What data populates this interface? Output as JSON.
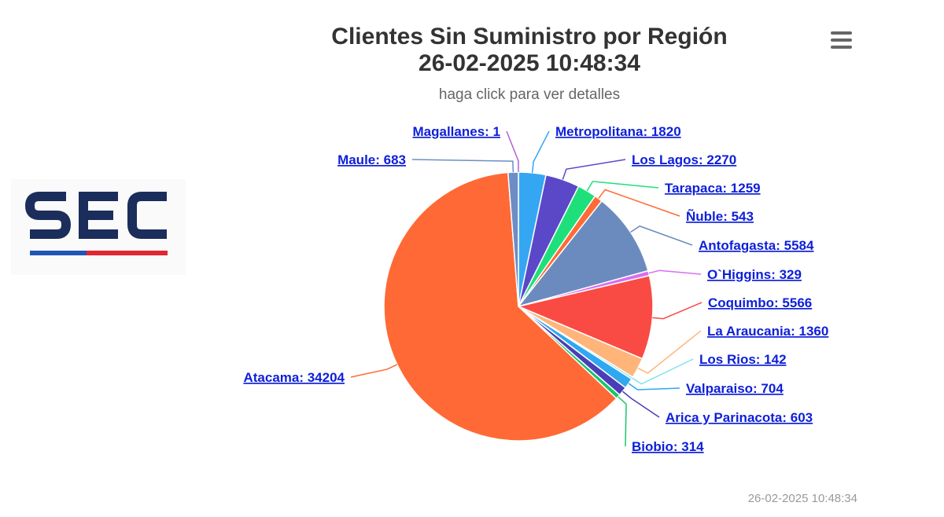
{
  "chart_data": {
    "type": "pie",
    "title_line1": "Clientes Sin Suministro por Región",
    "title_line2": "26-02-2025 10:48:34",
    "subtitle": "haga click para ver detalles",
    "slices": [
      {
        "name": "Magallanes",
        "value": 1,
        "color": "#b25fd9"
      },
      {
        "name": "Metropolitana",
        "value": 1820,
        "color": "#35a7f2"
      },
      {
        "name": "Los Lagos",
        "value": 2270,
        "color": "#5a48c9"
      },
      {
        "name": "Tarapaca",
        "value": 1259,
        "color": "#1ee07a"
      },
      {
        "name": "Ñuble",
        "value": 543,
        "color": "#ff6a35"
      },
      {
        "name": "Antofagasta",
        "value": 5584,
        "color": "#6b8bbf"
      },
      {
        "name": "O`Higgins",
        "value": 329,
        "color": "#d86ef0"
      },
      {
        "name": "Coquimbo",
        "value": 5566,
        "color": "#f94b44"
      },
      {
        "name": "La Araucania",
        "value": 1360,
        "color": "#ffb57a"
      },
      {
        "name": "Los Rios",
        "value": 142,
        "color": "#7fe3ef"
      },
      {
        "name": "Valparaiso",
        "value": 704,
        "color": "#2fa8f0"
      },
      {
        "name": "Arica y Parinacota",
        "value": 603,
        "color": "#4a3db8"
      },
      {
        "name": "Biobio",
        "value": 314,
        "color": "#19c46d"
      },
      {
        "name": "Atacama",
        "value": 34204,
        "color": "#ff6935"
      },
      {
        "name": "Maule",
        "value": 683,
        "color": "#6e8dc4"
      }
    ]
  },
  "logo": {
    "text": "SEC",
    "colors": {
      "dark": "#1b2d5a",
      "red": "#e0262f",
      "blue": "#1f56b5"
    }
  },
  "credits": "26-02-2025 10:48:34",
  "menu_icon": "hamburger-icon"
}
